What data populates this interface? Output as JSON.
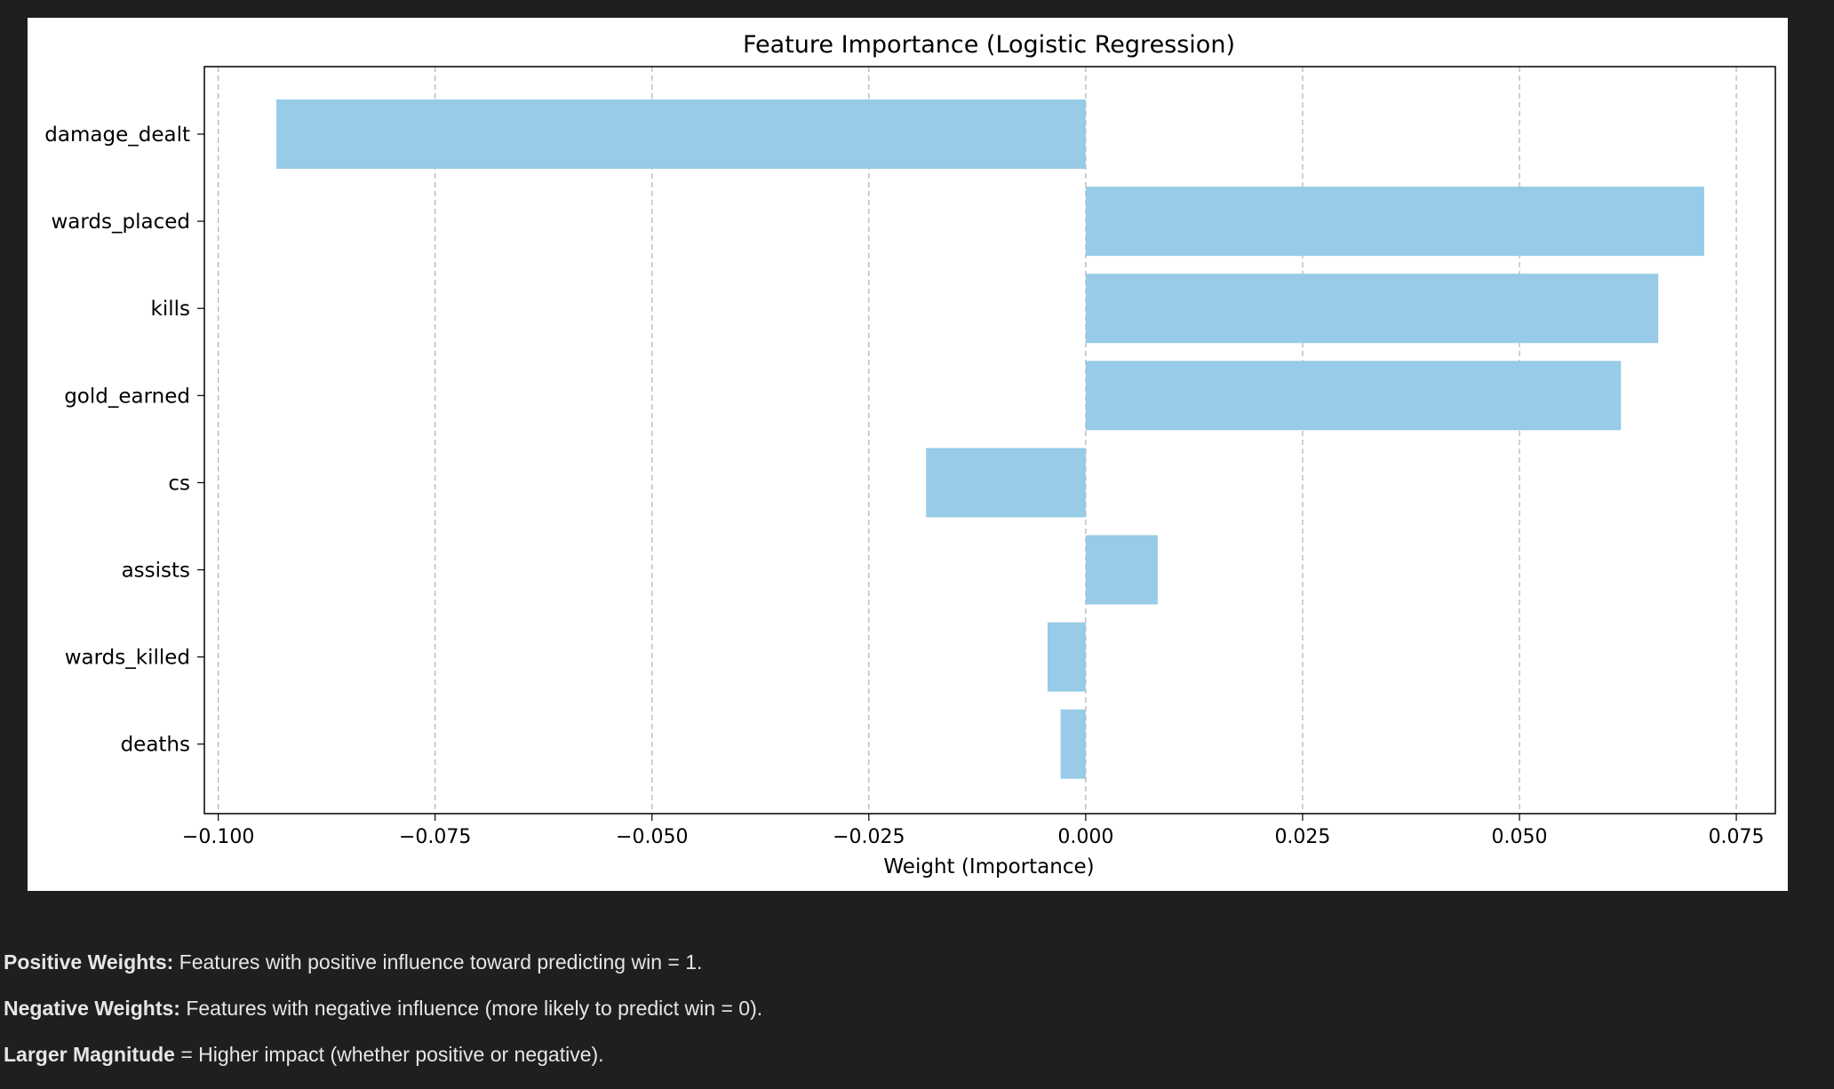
{
  "chart_data": {
    "type": "bar",
    "orientation": "horizontal",
    "title": "Feature Importance (Logistic Regression)",
    "xlabel": "Weight (Importance)",
    "ylabel": "",
    "categories": [
      "damage_dealt",
      "wards_placed",
      "kills",
      "gold_earned",
      "cs",
      "assists",
      "wards_killed",
      "deaths"
    ],
    "values": [
      -0.0933,
      0.0713,
      0.066,
      0.0617,
      -0.0184,
      0.0083,
      -0.0044,
      -0.0029
    ],
    "xlim": [
      -0.1016,
      0.0795
    ],
    "x_ticks": [
      -0.1,
      -0.075,
      -0.05,
      -0.025,
      0.0,
      0.025,
      0.05,
      0.075
    ],
    "x_tick_labels": [
      "−0.100",
      "−0.075",
      "−0.050",
      "−0.025",
      "0.000",
      "0.025",
      "0.050",
      "0.075"
    ],
    "grid": "x-dashed",
    "bar_color": "#97cbe7"
  },
  "notes": [
    {
      "bold": "Positive Weights:",
      "text": " Features with positive influence toward predicting win = 1."
    },
    {
      "bold": "Negative Weights:",
      "text": " Features with negative influence (more likely to predict win = 0)."
    },
    {
      "bold": "Larger Magnitude",
      "text": " = Higher impact (whether positive or negative)."
    }
  ]
}
